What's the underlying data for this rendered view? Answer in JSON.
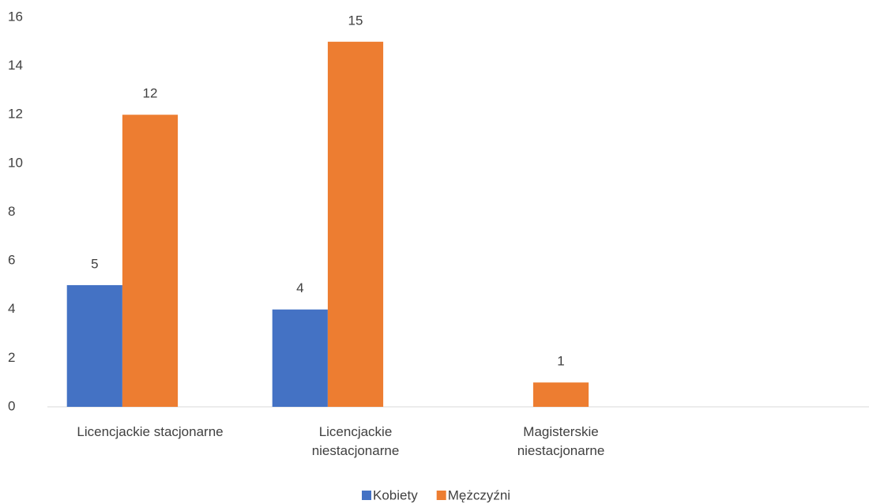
{
  "chart_data": {
    "type": "bar",
    "categories": [
      "Licencjackie stacjonarne",
      "Licencjackie niestacjonarne",
      "Magisterskie niestacjonarne",
      null
    ],
    "series": [
      {
        "name": "Kobiety",
        "color": "#4472c4",
        "values": [
          5,
          4,
          null,
          null
        ]
      },
      {
        "name": "Mężczyźni",
        "color": "#ed7d31",
        "values": [
          12,
          15,
          1,
          null
        ]
      }
    ],
    "ylim": [
      0,
      16
    ],
    "yticks": [
      0,
      2,
      4,
      6,
      8,
      10,
      12,
      14,
      16
    ],
    "grid": false,
    "legend": "bottom"
  }
}
